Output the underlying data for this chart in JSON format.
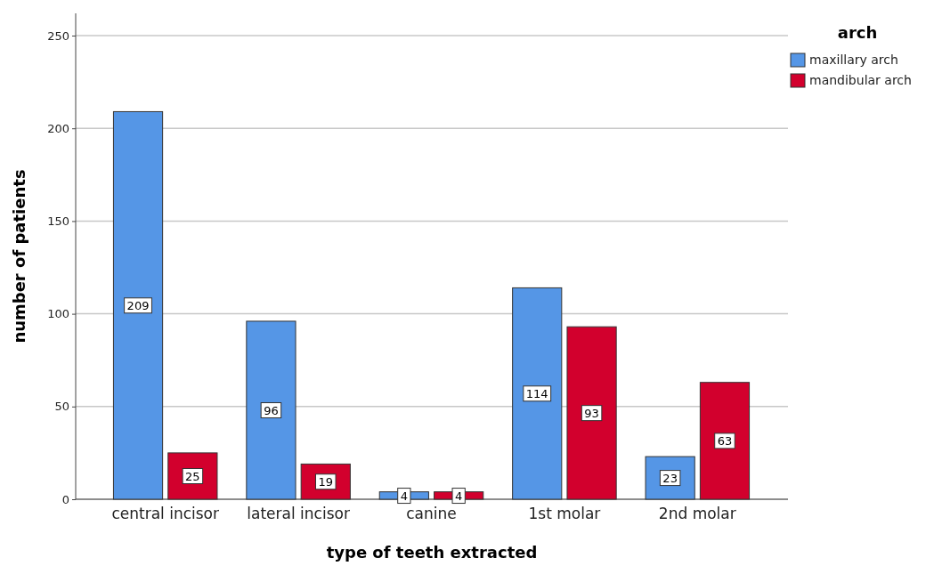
{
  "chart_data": {
    "type": "bar",
    "xlabel": "type of teeth extracted",
    "ylabel": "number of patients",
    "legend_title": "arch",
    "categories": [
      "central incisor",
      "lateral incisor",
      "canine",
      "1st molar",
      "2nd molar"
    ],
    "series": [
      {
        "name": "maxillary arch",
        "color": "#5596e6",
        "values": [
          209,
          96,
          4,
          114,
          23
        ]
      },
      {
        "name": "mandibular arch",
        "color": "#d2002d",
        "values": [
          25,
          19,
          4,
          93,
          63
        ]
      }
    ],
    "ylim": [
      0,
      262
    ],
    "yticks": [
      0,
      50,
      100,
      150,
      200,
      250
    ],
    "grid": "y",
    "legend": "top right",
    "data_labels": true
  }
}
